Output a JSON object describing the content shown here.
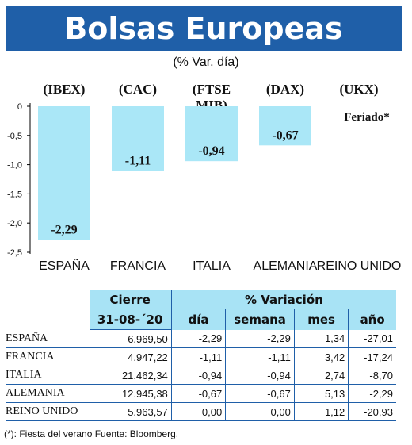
{
  "title": "Bolsas Europeas",
  "subtitle": "(% Var. día)",
  "chart_data": {
    "type": "bar",
    "categories": [
      "ESPAÑA",
      "FRANCIA",
      "ITALIA",
      "ALEMANIA",
      "REINO UNIDO"
    ],
    "index_labels": [
      "(IBEX)",
      "(CAC)",
      "(FTSE MIB)",
      "(DAX)",
      "(UKX)"
    ],
    "values": [
      -2.29,
      -1.11,
      -0.94,
      -0.67,
      null
    ],
    "value_labels": [
      "-2,29",
      "-1,11",
      "-0,94",
      "-0,67",
      "Feriado*"
    ],
    "yticks": [
      0,
      -0.5,
      -1.0,
      -1.5,
      -2.0,
      -2.5
    ],
    "ytick_labels": [
      "0",
      "-0,5",
      "-1,0",
      "-1,5",
      "-2,0",
      "-2,5"
    ],
    "ylim": [
      -2.5,
      0
    ],
    "bar_color": "#aae7f7",
    "grid": false
  },
  "table": {
    "header_cierre": "Cierre",
    "header_variacion": "% Variación",
    "date": "31-08-´20",
    "cols": [
      "día",
      "semana",
      "mes",
      "año"
    ],
    "rows": [
      {
        "name": "ESPAÑA",
        "cierre": "6.969,50",
        "dia": "-2,29",
        "semana": "-2,29",
        "mes": "1,34",
        "ano": "-27,01"
      },
      {
        "name": "FRANCIA",
        "cierre": "4.947,22",
        "dia": "-1,11",
        "semana": "-1,11",
        "mes": "3,42",
        "ano": "-17,24"
      },
      {
        "name": "ITALIA",
        "cierre": "21.462,34",
        "dia": "-0,94",
        "semana": "-0,94",
        "mes": "2,74",
        "ano": "-8,70"
      },
      {
        "name": "ALEMANIA",
        "cierre": "12.945,38",
        "dia": "-0,67",
        "semana": "-0,67",
        "mes": "5,13",
        "ano": "-2,29"
      },
      {
        "name": "REINO UNIDO",
        "cierre": "5.963,57",
        "dia": "0,00",
        "semana": "0,00",
        "mes": "1,12",
        "ano": "-20,93"
      }
    ]
  },
  "footnote": "(*): Fiesta del verano Fuente: Bloomberg."
}
